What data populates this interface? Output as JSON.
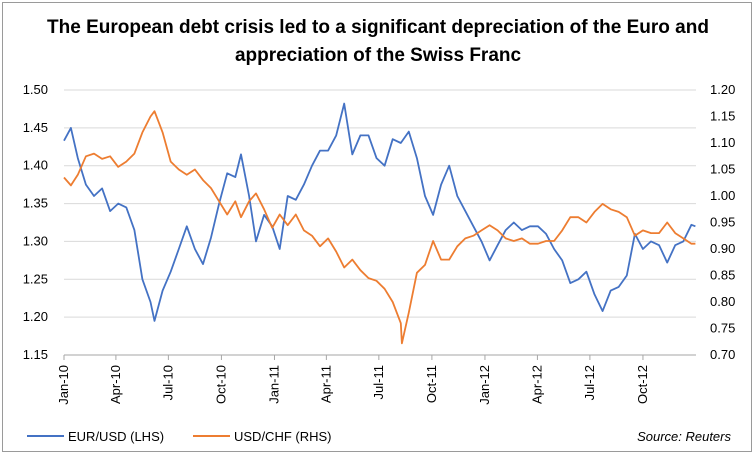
{
  "chart_data": {
    "type": "line",
    "title": "The European debt crisis led to a significant depreciation of the Euro and appreciation of the Swiss Franc",
    "source": "Source: Reuters",
    "x_ticks": [
      "Jan-10",
      "Apr-10",
      "Jul-10",
      "Oct-10",
      "Jan-11",
      "Apr-11",
      "Jul-11",
      "Oct-11",
      "Jan-12",
      "Apr-12",
      "Jul-12",
      "Oct-12"
    ],
    "x_range": [
      "Jan-10",
      "Jan-13"
    ],
    "y_left": {
      "lim": [
        1.15,
        1.5
      ],
      "ticks": [
        "1.15",
        "1.20",
        "1.25",
        "1.30",
        "1.35",
        "1.40",
        "1.45",
        "1.50"
      ]
    },
    "y_right": {
      "lim": [
        0.7,
        1.2
      ],
      "ticks": [
        "0.70",
        "0.75",
        "0.80",
        "0.85",
        "0.90",
        "0.95",
        "1.00",
        "1.05",
        "1.10",
        "1.15",
        "1.20"
      ]
    },
    "grid": "horizontal",
    "legend_position": "bottom-left",
    "series": [
      {
        "name": "EUR/USD (LHS)",
        "axis": "left",
        "color": "#4472c4",
        "points": [
          [
            "2010-01-01",
            1.433
          ],
          [
            "2010-01-13",
            1.45
          ],
          [
            "2010-01-25",
            1.41
          ],
          [
            "2010-02-08",
            1.375
          ],
          [
            "2010-02-22",
            1.36
          ],
          [
            "2010-03-08",
            1.37
          ],
          [
            "2010-03-22",
            1.34
          ],
          [
            "2010-04-05",
            1.35
          ],
          [
            "2010-04-19",
            1.345
          ],
          [
            "2010-05-03",
            1.315
          ],
          [
            "2010-05-17",
            1.25
          ],
          [
            "2010-05-31",
            1.22
          ],
          [
            "2010-06-07",
            1.195
          ],
          [
            "2010-06-21",
            1.235
          ],
          [
            "2010-07-05",
            1.26
          ],
          [
            "2010-07-19",
            1.29
          ],
          [
            "2010-08-02",
            1.32
          ],
          [
            "2010-08-16",
            1.29
          ],
          [
            "2010-08-30",
            1.27
          ],
          [
            "2010-09-13",
            1.305
          ],
          [
            "2010-09-27",
            1.35
          ],
          [
            "2010-10-11",
            1.39
          ],
          [
            "2010-10-25",
            1.385
          ],
          [
            "2010-11-04",
            1.415
          ],
          [
            "2010-11-18",
            1.36
          ],
          [
            "2010-11-30",
            1.3
          ],
          [
            "2010-12-14",
            1.335
          ],
          [
            "2010-12-28",
            1.32
          ],
          [
            "2011-01-10",
            1.29
          ],
          [
            "2011-01-24",
            1.36
          ],
          [
            "2011-02-07",
            1.355
          ],
          [
            "2011-02-21",
            1.375
          ],
          [
            "2011-03-07",
            1.4
          ],
          [
            "2011-03-21",
            1.42
          ],
          [
            "2011-04-04",
            1.42
          ],
          [
            "2011-04-18",
            1.44
          ],
          [
            "2011-05-02",
            1.482
          ],
          [
            "2011-05-16",
            1.415
          ],
          [
            "2011-05-30",
            1.44
          ],
          [
            "2011-06-13",
            1.44
          ],
          [
            "2011-06-27",
            1.41
          ],
          [
            "2011-07-11",
            1.4
          ],
          [
            "2011-07-25",
            1.435
          ],
          [
            "2011-08-08",
            1.43
          ],
          [
            "2011-08-22",
            1.445
          ],
          [
            "2011-09-05",
            1.41
          ],
          [
            "2011-09-19",
            1.36
          ],
          [
            "2011-10-03",
            1.335
          ],
          [
            "2011-10-17",
            1.375
          ],
          [
            "2011-10-31",
            1.4
          ],
          [
            "2011-11-14",
            1.36
          ],
          [
            "2011-11-28",
            1.34
          ],
          [
            "2011-12-12",
            1.32
          ],
          [
            "2011-12-26",
            1.3
          ],
          [
            "2012-01-09",
            1.275
          ],
          [
            "2012-01-23",
            1.295
          ],
          [
            "2012-02-06",
            1.315
          ],
          [
            "2012-02-20",
            1.325
          ],
          [
            "2012-03-05",
            1.315
          ],
          [
            "2012-03-19",
            1.32
          ],
          [
            "2012-04-02",
            1.32
          ],
          [
            "2012-04-16",
            1.31
          ],
          [
            "2012-04-30",
            1.29
          ],
          [
            "2012-05-14",
            1.275
          ],
          [
            "2012-05-28",
            1.245
          ],
          [
            "2012-06-11",
            1.25
          ],
          [
            "2012-06-25",
            1.26
          ],
          [
            "2012-07-09",
            1.23
          ],
          [
            "2012-07-23",
            1.208
          ],
          [
            "2012-08-06",
            1.235
          ],
          [
            "2012-08-20",
            1.24
          ],
          [
            "2012-09-03",
            1.255
          ],
          [
            "2012-09-17",
            1.31
          ],
          [
            "2012-10-01",
            1.29
          ],
          [
            "2012-10-15",
            1.3
          ],
          [
            "2012-10-29",
            1.295
          ],
          [
            "2012-11-12",
            1.272
          ],
          [
            "2012-11-26",
            1.295
          ],
          [
            "2012-12-10",
            1.3
          ],
          [
            "2012-12-24",
            1.322
          ],
          [
            "2012-12-31",
            1.32
          ]
        ]
      },
      {
        "name": "USD/CHF (RHS)",
        "axis": "right",
        "color": "#ed7d31",
        "points": [
          [
            "2010-01-01",
            1.035
          ],
          [
            "2010-01-13",
            1.02
          ],
          [
            "2010-01-25",
            1.04
          ],
          [
            "2010-02-08",
            1.075
          ],
          [
            "2010-02-22",
            1.08
          ],
          [
            "2010-03-08",
            1.07
          ],
          [
            "2010-03-22",
            1.075
          ],
          [
            "2010-04-05",
            1.055
          ],
          [
            "2010-04-19",
            1.065
          ],
          [
            "2010-05-03",
            1.08
          ],
          [
            "2010-05-17",
            1.12
          ],
          [
            "2010-05-31",
            1.15
          ],
          [
            "2010-06-07",
            1.16
          ],
          [
            "2010-06-21",
            1.12
          ],
          [
            "2010-07-05",
            1.065
          ],
          [
            "2010-07-19",
            1.05
          ],
          [
            "2010-08-02",
            1.04
          ],
          [
            "2010-08-16",
            1.05
          ],
          [
            "2010-08-30",
            1.03
          ],
          [
            "2010-09-13",
            1.015
          ],
          [
            "2010-09-27",
            0.99
          ],
          [
            "2010-10-11",
            0.965
          ],
          [
            "2010-10-25",
            0.99
          ],
          [
            "2010-11-04",
            0.96
          ],
          [
            "2010-11-18",
            0.99
          ],
          [
            "2010-11-30",
            1.005
          ],
          [
            "2010-12-14",
            0.975
          ],
          [
            "2010-12-28",
            0.94
          ],
          [
            "2011-01-10",
            0.965
          ],
          [
            "2011-01-24",
            0.945
          ],
          [
            "2011-02-07",
            0.965
          ],
          [
            "2011-02-21",
            0.935
          ],
          [
            "2011-03-07",
            0.925
          ],
          [
            "2011-03-21",
            0.905
          ],
          [
            "2011-04-04",
            0.92
          ],
          [
            "2011-04-18",
            0.895
          ],
          [
            "2011-05-02",
            0.865
          ],
          [
            "2011-05-16",
            0.88
          ],
          [
            "2011-05-30",
            0.86
          ],
          [
            "2011-06-13",
            0.845
          ],
          [
            "2011-06-27",
            0.84
          ],
          [
            "2011-07-11",
            0.825
          ],
          [
            "2011-07-25",
            0.8
          ],
          [
            "2011-08-08",
            0.76
          ],
          [
            "2011-08-10",
            0.722
          ],
          [
            "2011-08-22",
            0.78
          ],
          [
            "2011-09-05",
            0.855
          ],
          [
            "2011-09-19",
            0.87
          ],
          [
            "2011-10-03",
            0.915
          ],
          [
            "2011-10-17",
            0.88
          ],
          [
            "2011-10-31",
            0.88
          ],
          [
            "2011-11-14",
            0.905
          ],
          [
            "2011-11-28",
            0.92
          ],
          [
            "2011-12-12",
            0.925
          ],
          [
            "2011-12-26",
            0.935
          ],
          [
            "2012-01-09",
            0.945
          ],
          [
            "2012-01-23",
            0.935
          ],
          [
            "2012-02-06",
            0.92
          ],
          [
            "2012-02-20",
            0.915
          ],
          [
            "2012-03-05",
            0.92
          ],
          [
            "2012-03-19",
            0.91
          ],
          [
            "2012-04-02",
            0.91
          ],
          [
            "2012-04-16",
            0.915
          ],
          [
            "2012-04-30",
            0.915
          ],
          [
            "2012-05-14",
            0.935
          ],
          [
            "2012-05-28",
            0.96
          ],
          [
            "2012-06-11",
            0.96
          ],
          [
            "2012-06-25",
            0.95
          ],
          [
            "2012-07-09",
            0.97
          ],
          [
            "2012-07-23",
            0.985
          ],
          [
            "2012-08-06",
            0.975
          ],
          [
            "2012-08-20",
            0.97
          ],
          [
            "2012-09-03",
            0.96
          ],
          [
            "2012-09-17",
            0.925
          ],
          [
            "2012-10-01",
            0.935
          ],
          [
            "2012-10-15",
            0.93
          ],
          [
            "2012-10-29",
            0.93
          ],
          [
            "2012-11-12",
            0.95
          ],
          [
            "2012-11-26",
            0.93
          ],
          [
            "2012-12-10",
            0.92
          ],
          [
            "2012-12-24",
            0.91
          ],
          [
            "2012-12-31",
            0.91
          ]
        ]
      }
    ]
  }
}
